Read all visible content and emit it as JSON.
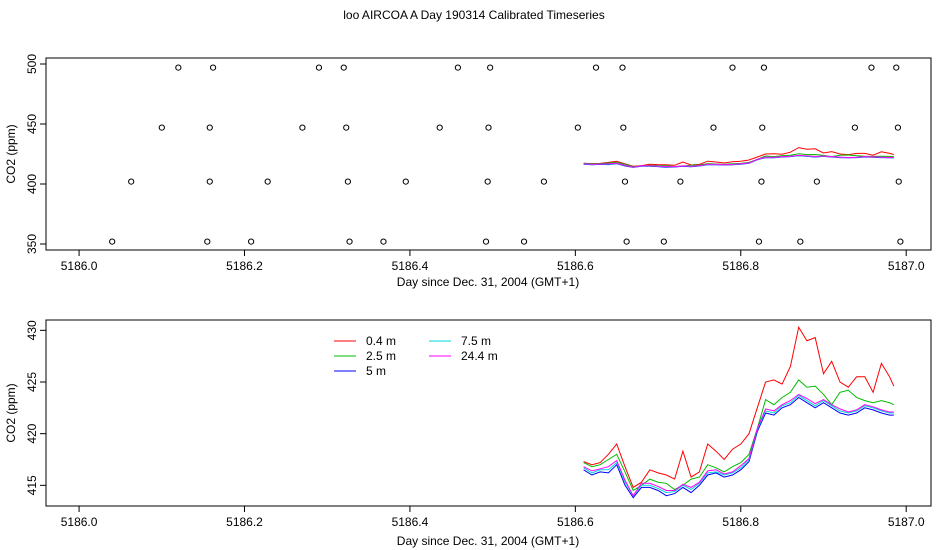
{
  "figure_title": "loo AIRCOA A  Day 190314  Calibrated Timeseries",
  "chart_data": [
    {
      "type": "scatter",
      "xlabel": "Day since Dec. 31, 2004 (GMT+1)",
      "ylabel": "CO2 (ppm)",
      "xlim": [
        5185.96,
        5187.03
      ],
      "ylim": [
        345,
        505
      ],
      "xticks": [
        "5186.0",
        "5186.2",
        "5186.4",
        "5186.6",
        "5186.8",
        "5187.0"
      ],
      "xtick_values": [
        5186.0,
        5186.2,
        5186.4,
        5186.6,
        5186.8,
        5187.0
      ],
      "yticks": [
        "350",
        "400",
        "450",
        "500"
      ],
      "ytick_values": [
        350,
        400,
        450,
        500
      ],
      "grid": false,
      "points": {
        "x": [
          5186.04,
          5186.063,
          5186.1,
          5186.12,
          5186.155,
          5186.158,
          5186.158,
          5186.162,
          5186.208,
          5186.228,
          5186.27,
          5186.29,
          5186.32,
          5186.323,
          5186.325,
          5186.327,
          5186.368,
          5186.395,
          5186.436,
          5186.458,
          5186.492,
          5186.494,
          5186.495,
          5186.497,
          5186.538,
          5186.562,
          5186.603,
          5186.625,
          5186.657,
          5186.658,
          5186.66,
          5186.662,
          5186.707,
          5186.727,
          5186.767,
          5186.79,
          5186.822,
          5186.825,
          5186.826,
          5186.828,
          5186.872,
          5186.892,
          5186.938,
          5186.958,
          5186.988,
          5186.99,
          5186.991,
          5186.993
        ],
        "y": [
          352,
          402,
          447,
          497,
          352,
          402,
          447,
          497,
          352,
          402,
          447,
          497,
          497,
          447,
          402,
          352,
          352,
          402,
          447,
          497,
          352,
          402,
          447,
          497,
          352,
          402,
          447,
          497,
          497,
          447,
          402,
          352,
          352,
          402,
          447,
          497,
          352,
          402,
          447,
          497,
          352,
          402,
          447,
          497,
          497,
          447,
          402,
          352
        ]
      },
      "series": [
        {
          "name": "0.4 m",
          "color": "#ff0000",
          "x": [
            5186.61,
            5186.62,
            5186.63,
            5186.64,
            5186.65,
            5186.66,
            5186.67,
            5186.68,
            5186.69,
            5186.7,
            5186.71,
            5186.72,
            5186.73,
            5186.74,
            5186.75,
            5186.76,
            5186.77,
            5186.78,
            5186.79,
            5186.8,
            5186.81,
            5186.82,
            5186.83,
            5186.84,
            5186.85,
            5186.86,
            5186.87,
            5186.88,
            5186.89,
            5186.9,
            5186.91,
            5186.92,
            5186.93,
            5186.94,
            5186.95,
            5186.96,
            5186.97,
            5186.98,
            5186.985
          ],
          "y": [
            417.3,
            417.0,
            417.2,
            418.0,
            419.0,
            416.8,
            414.8,
            415.3,
            416.5,
            416.2,
            416.0,
            415.6,
            418.3,
            415.8,
            416.3,
            419.0,
            418.3,
            417.5,
            418.5,
            419.0,
            420.0,
            422.5,
            425.0,
            425.2,
            424.8,
            426.5,
            430.3,
            429.0,
            429.3,
            425.8,
            427.0,
            425.0,
            424.5,
            425.5,
            425.5,
            424.0,
            426.8,
            425.5,
            424.6
          ]
        },
        {
          "name": "2.5 m",
          "color": "#00bb00",
          "x": [
            5186.61,
            5186.62,
            5186.63,
            5186.64,
            5186.65,
            5186.66,
            5186.67,
            5186.68,
            5186.69,
            5186.7,
            5186.71,
            5186.72,
            5186.73,
            5186.74,
            5186.75,
            5186.76,
            5186.77,
            5186.78,
            5186.79,
            5186.8,
            5186.81,
            5186.82,
            5186.83,
            5186.84,
            5186.85,
            5186.86,
            5186.87,
            5186.88,
            5186.89,
            5186.9,
            5186.91,
            5186.92,
            5186.93,
            5186.94,
            5186.95,
            5186.96,
            5186.97,
            5186.98,
            5186.985
          ],
          "y": [
            417.2,
            416.8,
            417.0,
            417.5,
            418.0,
            416.3,
            414.5,
            415.0,
            415.6,
            415.3,
            415.2,
            414.6,
            415.0,
            415.6,
            415.8,
            417.0,
            416.7,
            416.3,
            416.8,
            417.2,
            418.0,
            420.5,
            423.3,
            422.8,
            423.5,
            424.0,
            425.2,
            424.5,
            424.6,
            423.8,
            422.8,
            424.0,
            424.2,
            423.5,
            423.2,
            423.0,
            423.2,
            423.0,
            422.8
          ]
        },
        {
          "name": "5 m",
          "color": "#0000ff",
          "x": [
            5186.61,
            5186.62,
            5186.63,
            5186.64,
            5186.65,
            5186.66,
            5186.67,
            5186.68,
            5186.69,
            5186.7,
            5186.71,
            5186.72,
            5186.73,
            5186.74,
            5186.75,
            5186.76,
            5186.77,
            5186.78,
            5186.79,
            5186.8,
            5186.81,
            5186.82,
            5186.83,
            5186.84,
            5186.85,
            5186.86,
            5186.87,
            5186.88,
            5186.89,
            5186.9,
            5186.91,
            5186.92,
            5186.93,
            5186.94,
            5186.95,
            5186.96,
            5186.97,
            5186.98,
            5186.985
          ],
          "y": [
            416.5,
            416.0,
            416.3,
            416.2,
            417.0,
            415.0,
            413.8,
            414.8,
            414.8,
            414.5,
            414.0,
            414.2,
            414.8,
            414.3,
            415.0,
            416.0,
            416.2,
            415.8,
            416.0,
            416.5,
            417.3,
            420.2,
            422.0,
            421.8,
            422.5,
            422.8,
            423.5,
            423.0,
            422.5,
            423.0,
            422.5,
            422.0,
            421.8,
            422.0,
            422.5,
            422.3,
            422.0,
            421.8,
            421.8
          ]
        },
        {
          "name": "7.5 m",
          "color": "#00d8d8",
          "x": [
            5186.61,
            5186.62,
            5186.63,
            5186.64,
            5186.65,
            5186.66,
            5186.67,
            5186.68,
            5186.69,
            5186.7,
            5186.71,
            5186.72,
            5186.73,
            5186.74,
            5186.75,
            5186.76,
            5186.77,
            5186.78,
            5186.79,
            5186.8,
            5186.81,
            5186.82,
            5186.83,
            5186.84,
            5186.85,
            5186.86,
            5186.87,
            5186.88,
            5186.89,
            5186.9,
            5186.91,
            5186.92,
            5186.93,
            5186.94,
            5186.95,
            5186.96,
            5186.97,
            5186.98,
            5186.985
          ],
          "y": [
            416.7,
            416.2,
            416.5,
            416.5,
            417.2,
            415.3,
            414.0,
            415.0,
            415.0,
            414.7,
            414.3,
            414.4,
            415.0,
            414.6,
            415.2,
            416.2,
            416.3,
            416.0,
            416.2,
            416.7,
            417.5,
            420.4,
            422.2,
            422.0,
            422.7,
            423.0,
            423.7,
            423.2,
            422.7,
            423.2,
            422.7,
            422.2,
            422.0,
            422.2,
            422.7,
            422.5,
            422.2,
            422.0,
            422.0
          ]
        },
        {
          "name": "24.4 m",
          "color": "#ff00ff",
          "x": [
            5186.61,
            5186.62,
            5186.63,
            5186.64,
            5186.65,
            5186.66,
            5186.67,
            5186.68,
            5186.69,
            5186.7,
            5186.71,
            5186.72,
            5186.73,
            5186.74,
            5186.75,
            5186.76,
            5186.77,
            5186.78,
            5186.79,
            5186.8,
            5186.81,
            5186.82,
            5186.83,
            5186.84,
            5186.85,
            5186.86,
            5186.87,
            5186.88,
            5186.89,
            5186.9,
            5186.91,
            5186.92,
            5186.93,
            5186.94,
            5186.95,
            5186.96,
            5186.97,
            5186.98,
            5186.985
          ],
          "y": [
            416.8,
            416.4,
            416.6,
            416.8,
            417.4,
            415.5,
            414.0,
            415.2,
            415.2,
            414.9,
            414.5,
            414.5,
            415.1,
            414.8,
            415.3,
            416.4,
            416.5,
            416.1,
            416.3,
            416.9,
            417.6,
            420.5,
            422.4,
            422.2,
            422.8,
            423.2,
            423.8,
            423.4,
            422.9,
            423.3,
            422.8,
            422.4,
            422.1,
            422.3,
            422.8,
            422.6,
            422.3,
            422.1,
            422.1
          ]
        }
      ]
    },
    {
      "type": "line",
      "xlabel": "Day since Dec. 31, 2004 (GMT+1)",
      "ylabel": "CO2 (ppm)",
      "xlim": [
        5185.96,
        5187.03
      ],
      "ylim": [
        413,
        431
      ],
      "xticks": [
        "5186.0",
        "5186.2",
        "5186.4",
        "5186.6",
        "5186.8",
        "5187.0"
      ],
      "xtick_values": [
        5186.0,
        5186.2,
        5186.4,
        5186.6,
        5186.8,
        5187.0
      ],
      "yticks": [
        "415",
        "420",
        "425",
        "430"
      ],
      "ytick_values": [
        415,
        420,
        425,
        430
      ],
      "grid": false,
      "legend": "top-left",
      "legend_layout": [
        [
          "0.4 m",
          "7.5 m"
        ],
        [
          "2.5 m",
          "24.4 m"
        ],
        [
          "5 m"
        ]
      ],
      "series_ref": "same as panel 1 series"
    }
  ]
}
